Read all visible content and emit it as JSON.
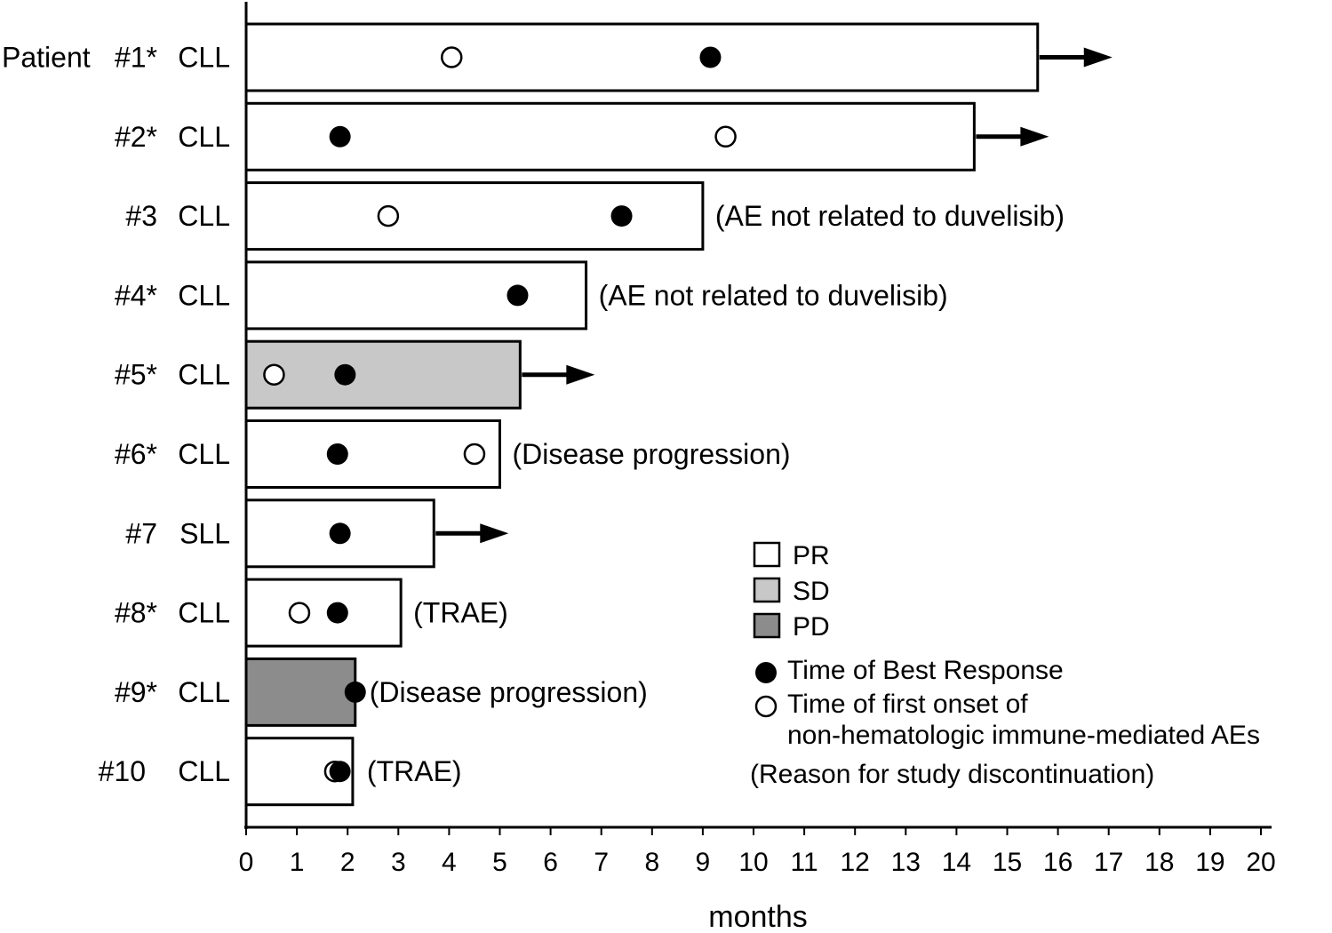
{
  "chart_data": {
    "type": "bar",
    "orientation": "horizontal",
    "title": "",
    "xlabel": "months",
    "ylabel": "",
    "xlim": [
      0,
      20
    ],
    "xticks": [
      0,
      1,
      2,
      3,
      4,
      5,
      6,
      7,
      8,
      9,
      10,
      11,
      12,
      13,
      14,
      15,
      16,
      17,
      18,
      19,
      20
    ],
    "grid": false,
    "patients": [
      {
        "prefix": "Patient",
        "id": "#1*",
        "type": "CLL",
        "duration": 15.6,
        "response": "PR",
        "best_response": 9.15,
        "ae_onset": 4.05,
        "ongoing": true,
        "reason": ""
      },
      {
        "prefix": "",
        "id": "#2*",
        "type": "CLL",
        "duration": 14.35,
        "response": "PR",
        "best_response": 1.85,
        "ae_onset": 9.45,
        "ongoing": true,
        "reason": ""
      },
      {
        "prefix": "",
        "id": "#3",
        "type": "CLL",
        "duration": 9.0,
        "response": "PR",
        "best_response": 7.4,
        "ae_onset": 2.8,
        "ongoing": false,
        "reason": "(AE not related to duvelisib)"
      },
      {
        "prefix": "",
        "id": "#4*",
        "type": "CLL",
        "duration": 6.7,
        "response": "PR",
        "best_response": 5.35,
        "ae_onset": null,
        "ongoing": false,
        "reason": "(AE not related to duvelisib)"
      },
      {
        "prefix": "",
        "id": "#5*",
        "type": "CLL",
        "duration": 5.4,
        "response": "SD",
        "best_response": 1.95,
        "ae_onset": 0.55,
        "ongoing": true,
        "reason": ""
      },
      {
        "prefix": "",
        "id": "#6*",
        "type": "CLL",
        "duration": 5.0,
        "response": "PR",
        "best_response": 1.8,
        "ae_onset": 4.5,
        "ongoing": false,
        "reason": "(Disease progression)"
      },
      {
        "prefix": "",
        "id": "#7",
        "type": "SLL",
        "duration": 3.7,
        "response": "PR",
        "best_response": 1.85,
        "ae_onset": null,
        "ongoing": true,
        "reason": ""
      },
      {
        "prefix": "",
        "id": "#8*",
        "type": "CLL",
        "duration": 3.05,
        "response": "PR",
        "best_response": 1.8,
        "ae_onset": 1.05,
        "ongoing": false,
        "reason": "(TRAE)"
      },
      {
        "prefix": "",
        "id": "#9*",
        "type": "CLL",
        "duration": 2.15,
        "response": "PD",
        "best_response": 2.15,
        "ae_onset": null,
        "ongoing": false,
        "reason": "(Disease progression)"
      },
      {
        "prefix": "",
        "id": "#10",
        "type": "CLL",
        "duration": 2.1,
        "response": "PR",
        "best_response": 1.85,
        "ae_onset": 1.75,
        "ongoing": false,
        "reason": "(TRAE)"
      }
    ],
    "legend": {
      "placement": "lower-right",
      "boxes": [
        {
          "label": "PR",
          "color": "#ffffff"
        },
        {
          "label": "SD",
          "color": "#c8c8c8"
        },
        {
          "label": "PD",
          "color": "#8c8c8c"
        }
      ],
      "best_response_label": "Time of Best Response",
      "ae_onset_label_line1": "Time of first onset of",
      "ae_onset_label_line2": "non-hematologic immune-mediated AEs",
      "reason_label": "(Reason for study discontinuation)"
    },
    "colors": {
      "PR": "#ffffff",
      "SD": "#c8c8c8",
      "PD": "#8c8c8c",
      "outline": "#000000"
    }
  }
}
